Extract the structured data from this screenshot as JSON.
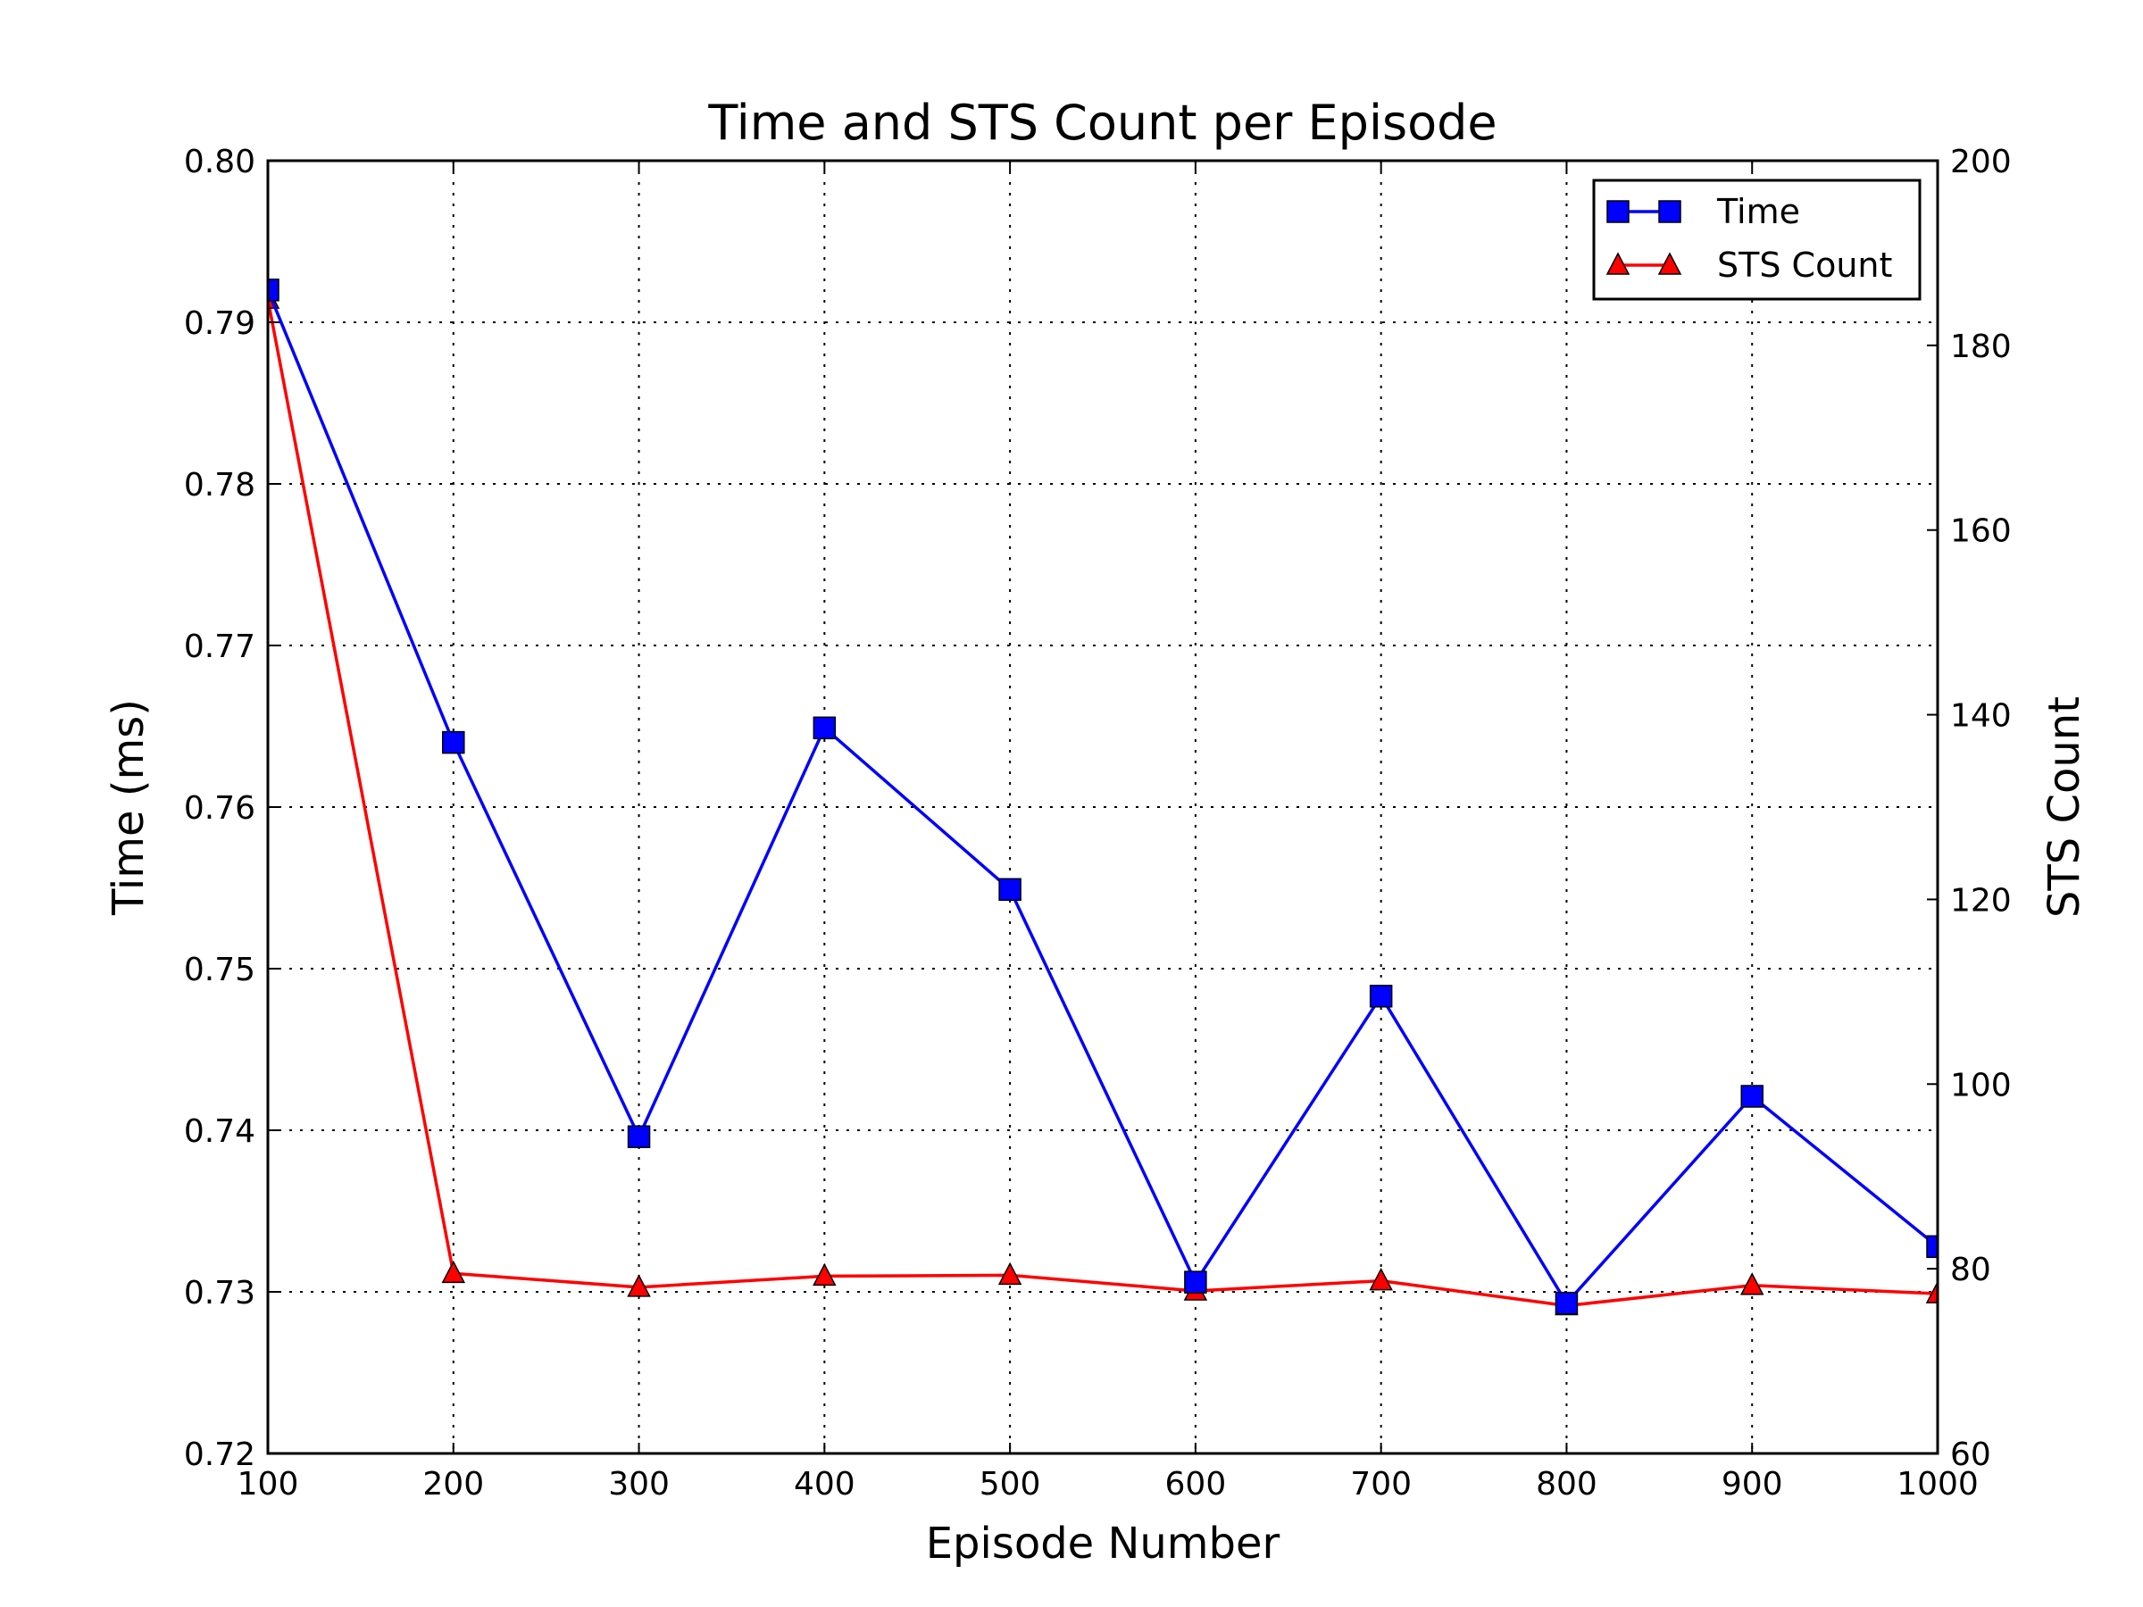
{
  "chart_data": {
    "type": "line",
    "title": "Time and STS Count per Episode",
    "xlabel": "Episode Number",
    "ylabel": "Time (ms)",
    "y2label": "STS Count",
    "x": [
      100,
      200,
      300,
      400,
      500,
      600,
      700,
      800,
      900,
      1000
    ],
    "xlim": [
      100,
      1000
    ],
    "ylim": [
      0.72,
      0.8
    ],
    "y2lim": [
      60,
      200
    ],
    "xticks": [
      "100",
      "200",
      "300",
      "400",
      "500",
      "600",
      "700",
      "800",
      "900",
      "1000"
    ],
    "yticks": [
      "0.72",
      "0.73",
      "0.74",
      "0.75",
      "0.76",
      "0.77",
      "0.78",
      "0.79",
      "0.80"
    ],
    "y2ticks": [
      "60",
      "80",
      "100",
      "120",
      "140",
      "160",
      "180",
      "200"
    ],
    "grid": true,
    "legend_position": "top-right",
    "series": [
      {
        "name": "Time",
        "axis": "left",
        "color": "#0000ff",
        "marker": "square",
        "values": [
          0.792,
          0.764,
          0.7396,
          0.7649,
          0.7549,
          0.7306,
          0.7483,
          0.7293,
          0.7421,
          0.7328
        ]
      },
      {
        "name": "STS Count",
        "axis": "right",
        "color": "#ff0000",
        "marker": "triangle",
        "values": [
          185,
          79.5,
          78,
          79.2,
          79.3,
          77.6,
          78.7,
          76,
          78.2,
          77.3
        ]
      }
    ]
  }
}
